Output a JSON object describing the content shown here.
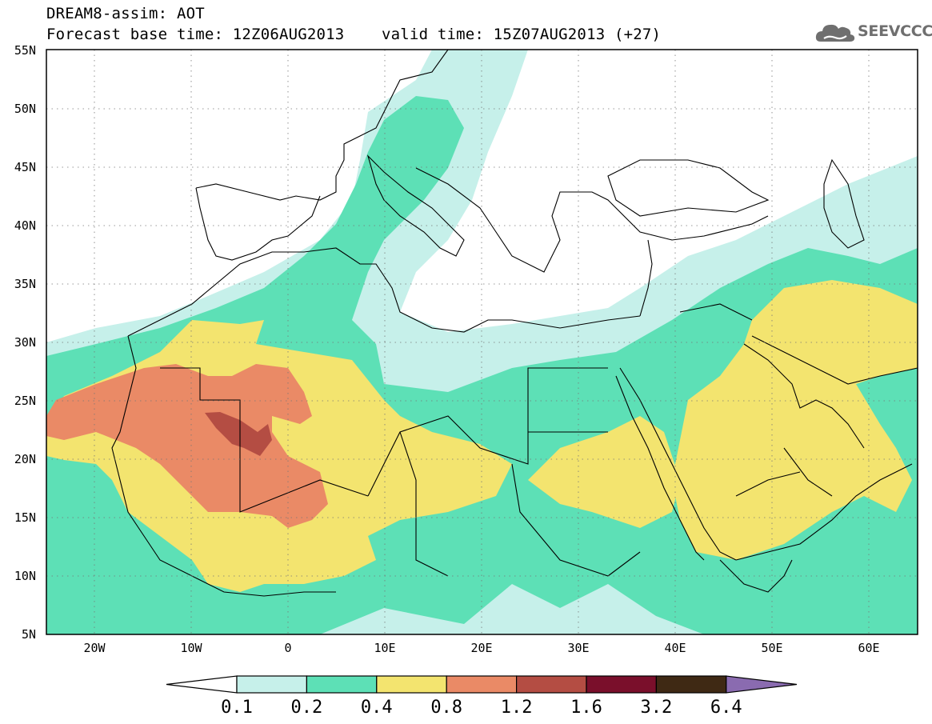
{
  "header": {
    "model_line": "DREAM8-assim: AOT",
    "forecast_line": "Forecast base time: 12Z06AUG2013",
    "valid_line": "valid time: 15Z07AUG2013 (+27)"
  },
  "logo": {
    "text": "SEEVCCC",
    "icon": "cloud-icon"
  },
  "map": {
    "lat_labels": [
      "55N",
      "50N",
      "45N",
      "40N",
      "35N",
      "30N",
      "25N",
      "20N",
      "15N",
      "10N",
      "5N"
    ],
    "lon_labels": [
      "20W",
      "10W",
      "0",
      "10E",
      "20E",
      "30E",
      "40E",
      "50E",
      "60E"
    ],
    "lon_range": [
      -25,
      65
    ],
    "lat_range": [
      5,
      55
    ],
    "grid": "dotted"
  },
  "colorbar": {
    "levels": [
      "0.1",
      "0.2",
      "0.4",
      "0.8",
      "1.2",
      "1.6",
      "3.2",
      "6.4"
    ],
    "colors": [
      "#ffffff",
      "#c6f0ea",
      "#5de0b6",
      "#f3e46f",
      "#ea8a66",
      "#b44d43",
      "#7a0f2b",
      "#3f2914",
      "#8a6bb0"
    ]
  }
}
